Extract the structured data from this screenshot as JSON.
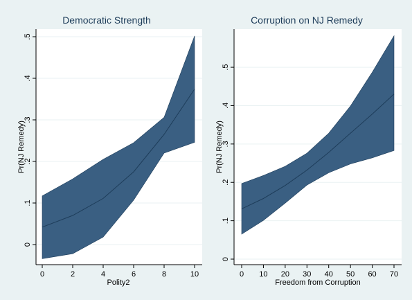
{
  "chart_data": [
    {
      "type": "area",
      "title": "Democratic Strength",
      "xlabel": "Polity2",
      "ylabel": "Pr(NJ Remedy)",
      "xlim": [
        0,
        10
      ],
      "ylim": [
        -0.035,
        0.505
      ],
      "x_ticks": [
        "0",
        "2",
        "4",
        "6",
        "8",
        "10"
      ],
      "y_ticks": [
        "0",
        ".1",
        ".2",
        ".3",
        ".4",
        ".5"
      ],
      "x": [
        0,
        2,
        4,
        6,
        8,
        10
      ],
      "series": [
        {
          "role": "estimate",
          "values": [
            0.042,
            0.07,
            0.111,
            0.175,
            0.265,
            0.374
          ]
        },
        {
          "role": "upper",
          "values": [
            0.117,
            0.158,
            0.205,
            0.245,
            0.306,
            0.502
          ]
        },
        {
          "role": "lower",
          "values": [
            -0.034,
            -0.022,
            0.018,
            0.107,
            0.22,
            0.246
          ]
        }
      ],
      "fill_color": "#3a5f82",
      "line_color": "#1e3d5a",
      "grid": true
    },
    {
      "type": "area",
      "title": "Corruption on NJ Remedy",
      "xlabel": "Freedom from Corruption",
      "ylabel": "Pr(NJ Remedy)",
      "xlim": [
        0,
        70
      ],
      "ylim": [
        0,
        0.585
      ],
      "x_ticks": [
        "0",
        "10",
        "20",
        "30",
        "40",
        "50",
        "60",
        "70"
      ],
      "y_ticks": [
        "0",
        ".1",
        ".2",
        ".3",
        ".4",
        ".5"
      ],
      "x": [
        0,
        10,
        20,
        30,
        40,
        50,
        60,
        70
      ],
      "series": [
        {
          "role": "estimate",
          "values": [
            0.131,
            0.158,
            0.192,
            0.232,
            0.278,
            0.328,
            0.378,
            0.43
          ]
        },
        {
          "role": "upper",
          "values": [
            0.197,
            0.218,
            0.242,
            0.276,
            0.328,
            0.399,
            0.487,
            0.582
          ]
        },
        {
          "role": "lower",
          "values": [
            0.065,
            0.101,
            0.146,
            0.193,
            0.225,
            0.248,
            0.264,
            0.283
          ]
        }
      ],
      "fill_color": "#3a5f82",
      "line_color": "#1e3d5a",
      "grid": true
    }
  ]
}
